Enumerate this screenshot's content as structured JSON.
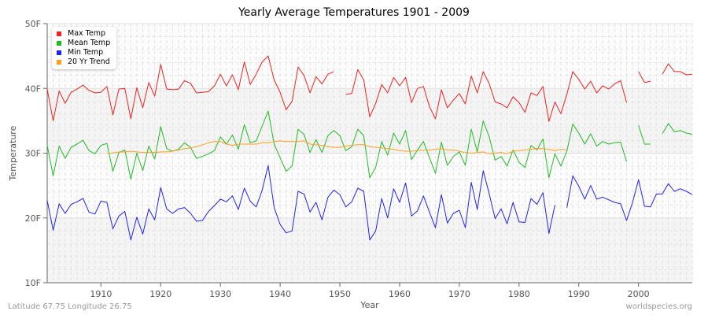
{
  "chart_data": {
    "type": "line",
    "title": "Yearly Average Temperatures 1901 - 2009",
    "xlabel": "Year",
    "ylabel": "Temperature",
    "xlim": [
      1901,
      2009
    ],
    "ylim": [
      10,
      50
    ],
    "yticks": [
      "10F",
      "20F",
      "30F",
      "40F",
      "50F"
    ],
    "ytick_values": [
      10,
      20,
      30,
      40,
      50
    ],
    "xticks": [
      "1910",
      "1920",
      "1930",
      "1940",
      "1950",
      "1960",
      "1970",
      "1980",
      "1990",
      "2000"
    ],
    "grid": true,
    "legend_position": "top-left",
    "x_start": 1901,
    "series": [
      {
        "name": "Max Temp",
        "color": "#ee2222",
        "values": [
          39.9,
          35.0,
          39.6,
          37.7,
          39.4,
          39.9,
          40.5,
          39.7,
          39.3,
          39.4,
          40.3,
          35.9,
          39.9,
          40.0,
          35.3,
          40.1,
          37.0,
          40.9,
          38.8,
          43.7,
          39.9,
          39.8,
          39.9,
          41.2,
          40.8,
          39.3,
          39.4,
          39.5,
          40.4,
          42.2,
          40.4,
          42.1,
          39.8,
          44.1,
          40.6,
          42.2,
          44.1,
          45.0,
          41.3,
          39.4,
          36.7,
          38.0,
          43.3,
          42.0,
          39.3,
          41.8,
          40.7,
          42.2,
          42.6,
          null,
          39.1,
          39.2,
          42.9,
          41.3,
          35.6,
          37.7,
          40.6,
          39.3,
          41.7,
          40.4,
          41.7,
          37.8,
          40.0,
          40.3,
          37.2,
          35.3,
          39.8,
          37.0,
          38.2,
          39.2,
          37.6,
          41.9,
          39.3,
          42.6,
          40.7,
          37.9,
          37.6,
          37.0,
          38.7,
          37.8,
          36.3,
          39.3,
          38.9,
          40.3,
          34.9,
          37.9,
          36.1,
          39.1,
          42.6,
          41.4,
          39.9,
          41.1,
          39.3,
          40.4,
          39.9,
          40.7,
          41.2,
          37.8,
          null,
          42.6,
          40.9,
          41.1,
          null,
          42.2,
          43.8,
          42.6,
          42.6,
          42.1,
          42.2
        ]
      },
      {
        "name": "Mean Temp",
        "color": "#22bb22",
        "values": [
          31.2,
          26.5,
          31.1,
          29.2,
          30.9,
          31.4,
          32.0,
          30.4,
          29.9,
          31.2,
          31.5,
          27.2,
          30.1,
          30.5,
          26.0,
          30.0,
          27.3,
          31.1,
          29.1,
          34.1,
          30.7,
          30.3,
          30.6,
          31.6,
          30.9,
          29.2,
          29.5,
          29.9,
          30.4,
          32.5,
          31.4,
          32.8,
          30.6,
          34.4,
          31.6,
          31.9,
          34.2,
          36.5,
          31.4,
          29.3,
          27.2,
          28.0,
          33.7,
          32.9,
          30.1,
          32.1,
          30.1,
          32.7,
          33.5,
          32.7,
          30.4,
          31.0,
          33.7,
          32.7,
          26.2,
          27.8,
          31.8,
          29.7,
          33.1,
          31.4,
          33.5,
          29.0,
          30.5,
          31.8,
          29.3,
          26.9,
          31.7,
          28.1,
          29.5,
          30.2,
          28.1,
          33.7,
          30.2,
          35.0,
          32.5,
          28.9,
          29.5,
          28.0,
          30.5,
          28.6,
          27.8,
          31.2,
          30.5,
          32.2,
          26.2,
          29.9,
          28.0,
          30.3,
          34.5,
          33.1,
          31.4,
          33.0,
          31.1,
          31.8,
          31.4,
          31.6,
          31.7,
          28.7,
          null,
          34.3,
          31.4,
          31.4,
          null,
          33.0,
          34.6,
          33.3,
          33.5,
          33.1,
          32.9
        ]
      },
      {
        "name": "Min Temp",
        "color": "#2222ee",
        "values": [
          22.7,
          18.1,
          22.2,
          20.7,
          22.1,
          22.5,
          23.0,
          20.9,
          20.6,
          22.6,
          22.4,
          18.3,
          20.3,
          21.0,
          16.6,
          20.1,
          17.5,
          21.4,
          19.7,
          24.7,
          21.4,
          20.7,
          21.4,
          21.6,
          20.7,
          19.5,
          19.6,
          21.0,
          21.9,
          22.9,
          22.5,
          23.4,
          21.3,
          24.6,
          22.6,
          21.7,
          24.3,
          28.1,
          21.6,
          19.0,
          17.7,
          18.0,
          24.1,
          23.7,
          20.9,
          22.4,
          19.7,
          23.2,
          24.3,
          23.6,
          21.7,
          22.5,
          24.6,
          24.1,
          16.6,
          18.0,
          23.0,
          20.0,
          24.5,
          22.4,
          25.4,
          20.3,
          21.1,
          23.4,
          20.9,
          18.5,
          23.6,
          19.2,
          20.7,
          21.2,
          18.5,
          25.5,
          21.3,
          27.3,
          23.7,
          19.9,
          21.4,
          19.1,
          22.4,
          19.4,
          19.3,
          23.0,
          22.1,
          23.9,
          17.6,
          22.0,
          null,
          21.6,
          26.5,
          24.9,
          22.9,
          25.0,
          22.9,
          23.2,
          22.8,
          22.4,
          22.2,
          19.6,
          22.4,
          25.9,
          21.8,
          21.7,
          23.7,
          23.7,
          25.3,
          24.1,
          24.5,
          24.1,
          23.6
        ]
      },
      {
        "name": "20 Yr Trend",
        "color": "#ffa020",
        "values": [
          null,
          null,
          null,
          null,
          null,
          null,
          null,
          null,
          null,
          null,
          30.0,
          30.0,
          30.2,
          30.2,
          30.3,
          30.2,
          30.1,
          30.1,
          30.1,
          30.2,
          30.2,
          30.3,
          30.5,
          30.7,
          30.8,
          31.0,
          31.3,
          31.6,
          31.8,
          31.8,
          31.4,
          31.2,
          31.4,
          31.4,
          31.4,
          31.4,
          31.6,
          31.6,
          31.8,
          31.9,
          31.8,
          31.8,
          31.8,
          31.9,
          31.4,
          31.3,
          31.2,
          31.0,
          30.9,
          30.9,
          31.1,
          31.2,
          31.3,
          31.3,
          31.0,
          30.9,
          30.8,
          30.7,
          30.6,
          30.4,
          30.3,
          30.3,
          30.4,
          30.5,
          30.5,
          30.6,
          30.7,
          30.5,
          30.5,
          30.3,
          30.1,
          30.0,
          30.1,
          30.2,
          29.9,
          30.0,
          30.1,
          29.9,
          30.3,
          30.4,
          30.5,
          30.6,
          30.7,
          30.7,
          30.6,
          30.4,
          30.6,
          30.5,
          null,
          null,
          null,
          null,
          null,
          null,
          null,
          null,
          null,
          null,
          null,
          null,
          null,
          null,
          null,
          null,
          null,
          null,
          null,
          null,
          null
        ]
      }
    ]
  },
  "footer": {
    "location": "Latitude 67.75 Longitude 26.75",
    "source": "worldspecies.org"
  }
}
